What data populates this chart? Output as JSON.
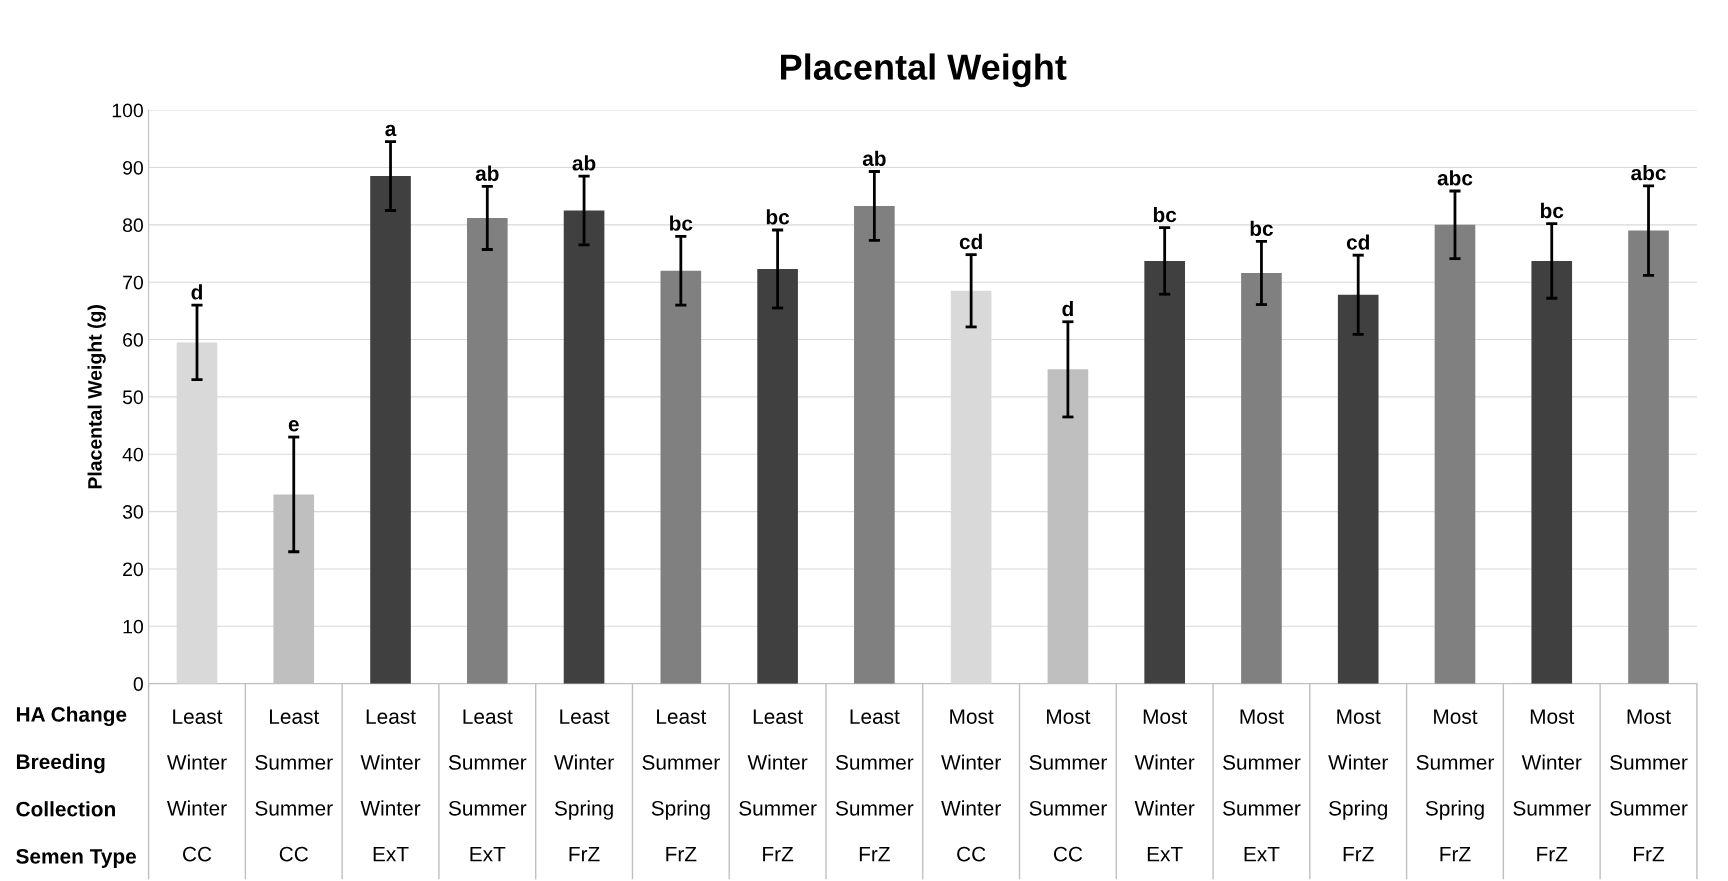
{
  "chart_data": {
    "type": "bar",
    "title": "Placental Weight",
    "ylabel": "Placental Weight (g)",
    "categories": [
      "Least\nWinter\nWinter\nCC",
      "Least\nSummer\nSummer\nCC",
      "Least\nWinter\nWinter\nExT",
      "Least\nSummer\nSummer\nExT",
      "Least\nWinter\nSpring\nFrZ",
      "Least\nSummer\nSpring\nFrZ",
      "Least\nWinter\nSummer\nFrZ",
      "Least\nSummer\nSummer\nFrZ",
      "Most\nWinter\nWinter\nCC",
      "Most\nSummer\nSummer\nCC",
      "Most\nWinter\nWinter\nExT",
      "Most\nSummer\nSummer\nExT",
      "Most\nWinter\nSpring\nFrZ",
      "Most\nSummer\nSpring\nFrZ",
      "Most\nWinter\nSummer\nFrZ",
      "Most\nSummer\nSummer\nFrZ"
    ],
    "values": [
      59.5,
      33,
      88.5,
      81.2,
      82.5,
      72,
      72.3,
      83.3,
      68.5,
      54.8,
      73.7,
      71.6,
      67.8,
      80,
      73.7,
      79
    ],
    "errors": [
      6.5,
      10,
      6,
      5.5,
      6,
      6,
      6.8,
      6,
      6.3,
      8.3,
      5.8,
      5.5,
      6.9,
      5.9,
      6.5,
      7.8
    ],
    "value_labels": [
      "d",
      "e",
      "a",
      "ab",
      "ab",
      "bc",
      "bc",
      "ab",
      "cd",
      "d",
      "bc",
      "bc",
      "cd",
      "abc",
      "bc",
      "abc"
    ],
    "colors": [
      "#d9d9d9",
      "#bfbfbf",
      "#404040",
      "#808080",
      "#404040",
      "#808080",
      "#404040",
      "#808080",
      "#d9d9d9",
      "#bfbfbf",
      "#404040",
      "#808080",
      "#404040",
      "#808080",
      "#404040",
      "#808080"
    ],
    "annotations": [
      "HA Change",
      "Breeding",
      "Collection",
      "Semen Type"
    ],
    "ylim": [
      0,
      100
    ],
    "yticks": [
      0,
      10,
      20,
      30,
      40,
      50,
      60,
      70,
      80,
      90,
      100
    ],
    "grid": "y"
  }
}
